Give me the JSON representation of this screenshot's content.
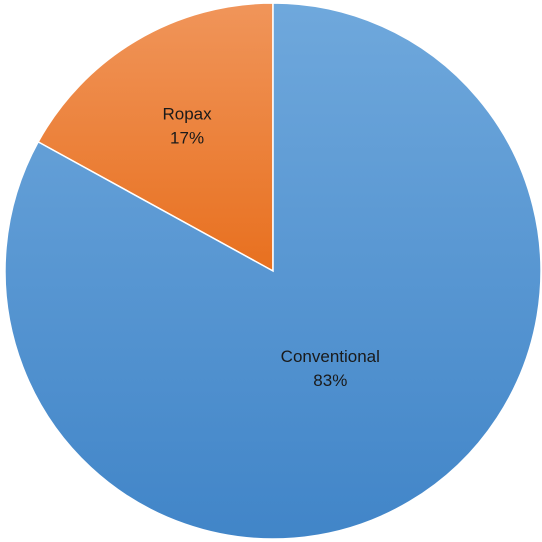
{
  "chart_data": {
    "type": "pie",
    "title": "",
    "legend": "none",
    "slices": [
      {
        "label": "Ropax",
        "value": 17,
        "percent_label": "17%",
        "color": "#ed7d31"
      },
      {
        "label": "Conventional",
        "value": 83,
        "percent_label": "83%",
        "color": "#5b9bd5"
      }
    ]
  }
}
